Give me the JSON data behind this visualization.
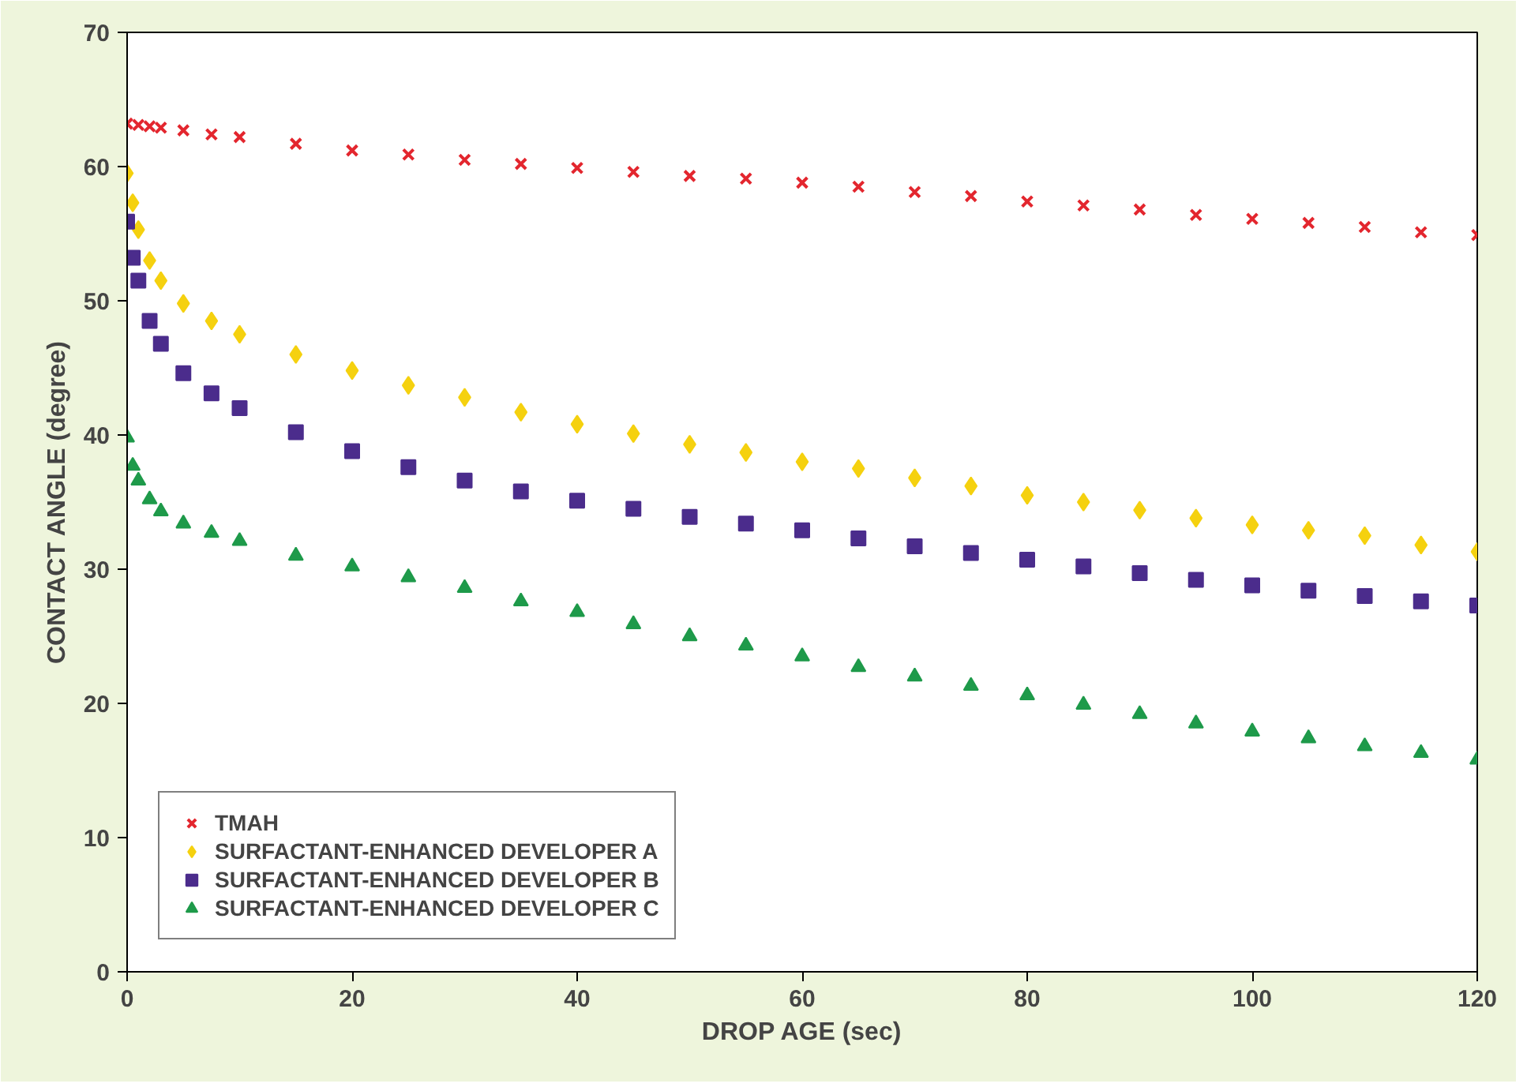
{
  "chart_data": {
    "type": "scatter",
    "xlabel": "DROP AGE (sec)",
    "ylabel": "CONTACT ANGLE (degree)",
    "xlim": [
      0,
      120
    ],
    "ylim": [
      0,
      70
    ],
    "xticks": [
      0,
      20,
      40,
      60,
      80,
      100,
      120
    ],
    "yticks": [
      0,
      10,
      20,
      30,
      40,
      50,
      60,
      70
    ],
    "grid": false,
    "legend": "bottom left",
    "x": [
      0,
      0.5,
      1,
      2,
      3,
      5,
      7.5,
      10,
      15,
      20,
      25,
      30,
      35,
      40,
      45,
      50,
      55,
      60,
      65,
      70,
      75,
      80,
      85,
      90,
      95,
      100,
      105,
      110,
      115,
      120
    ],
    "series": [
      {
        "name": "TMAH",
        "color": "#e3262e",
        "marker": "cross",
        "x": [
          0,
          1,
          2,
          3,
          5,
          7.5,
          10,
          15,
          20,
          25,
          30,
          35,
          40,
          45,
          50,
          55,
          60,
          65,
          70,
          75,
          80,
          85,
          90,
          95,
          100,
          105,
          110,
          115,
          120
        ],
        "values": [
          63.2,
          63.1,
          63.0,
          62.9,
          62.7,
          62.4,
          62.2,
          61.7,
          61.2,
          60.9,
          60.5,
          60.2,
          59.9,
          59.6,
          59.3,
          59.1,
          58.8,
          58.5,
          58.1,
          57.8,
          57.4,
          57.1,
          56.8,
          56.4,
          56.1,
          55.8,
          55.5,
          55.1,
          54.9
        ]
      },
      {
        "name": "SURFACTANT-ENHANCED DEVELOPER A",
        "color": "#f5d10f",
        "marker": "diamond",
        "values": [
          59.5,
          57.3,
          55.3,
          53.0,
          51.5,
          49.8,
          48.5,
          47.5,
          46.0,
          44.8,
          43.7,
          42.8,
          41.7,
          40.8,
          40.1,
          39.3,
          38.7,
          38.0,
          37.5,
          36.8,
          36.2,
          35.5,
          35.0,
          34.4,
          33.8,
          33.3,
          32.9,
          32.5,
          31.8,
          31.3
        ]
      },
      {
        "name": "SURFACTANT-ENHANCED DEVELOPER B",
        "color": "#4b2c8c",
        "marker": "square",
        "values": [
          55.9,
          53.2,
          51.5,
          48.5,
          46.8,
          44.6,
          43.1,
          42.0,
          40.2,
          38.8,
          37.6,
          36.6,
          35.8,
          35.1,
          34.5,
          33.9,
          33.4,
          32.9,
          32.3,
          31.7,
          31.2,
          30.7,
          30.2,
          29.7,
          29.2,
          28.8,
          28.4,
          28.0,
          27.6,
          27.3
        ]
      },
      {
        "name": "SURFACTANT-ENHANCED DEVELOPER C",
        "color": "#1e9a4a",
        "marker": "triangle",
        "values": [
          39.8,
          37.7,
          36.6,
          35.2,
          34.3,
          33.4,
          32.7,
          32.1,
          31.0,
          30.2,
          29.4,
          28.6,
          27.6,
          26.8,
          25.9,
          25.0,
          24.3,
          23.5,
          22.7,
          22.0,
          21.3,
          20.6,
          19.9,
          19.2,
          18.5,
          17.9,
          17.4,
          16.8,
          16.3,
          15.8
        ]
      }
    ]
  }
}
